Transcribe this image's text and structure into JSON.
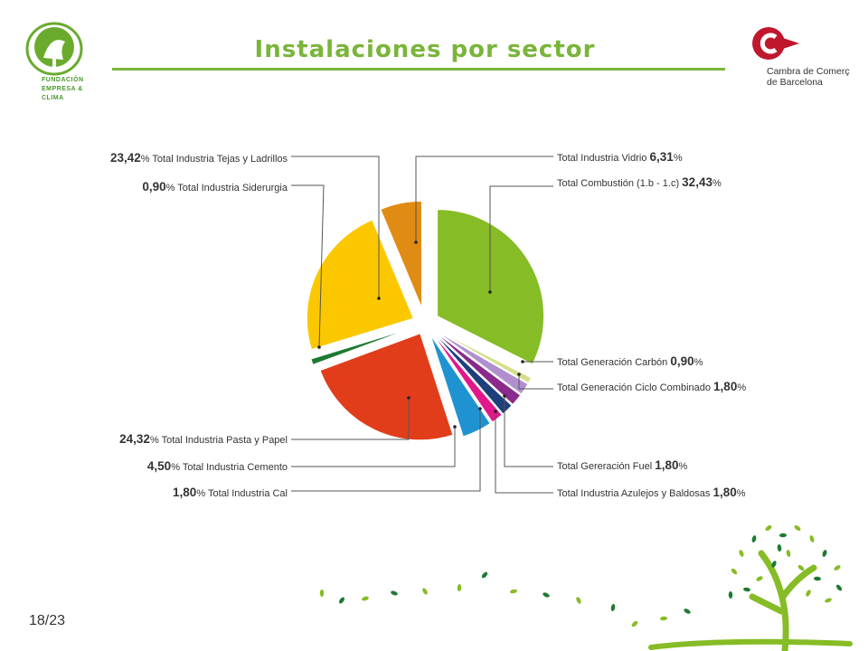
{
  "header": {
    "title": "Instalaciones por sector",
    "org_left": [
      "FUNDACIÓN",
      "EMPRESA &",
      "CLIMA"
    ],
    "org_right": [
      "Cambra de Comerç",
      "de Barcelona"
    ]
  },
  "page_number": "18/23",
  "colors": {
    "accent_green": "#7ab53a",
    "brand_red": "#c0172d"
  },
  "chart_data": {
    "type": "pie",
    "title": "Instalaciones por sector",
    "slices": [
      {
        "name": "Total Combustión (1.b - 1.c)",
        "pct_text": "32,43",
        "value": 32.43,
        "color": "#86bc25"
      },
      {
        "name": "Total Generación Carbón",
        "pct_text": "0,90",
        "value": 0.9,
        "color": "#d4e08a"
      },
      {
        "name": "Total Generación Ciclo Combinado",
        "pct_text": "1,80",
        "value": 1.8,
        "color": "#b18fcf"
      },
      {
        "name": "Total Industria Azulejos y Baldosas",
        "pct_text": "1,80",
        "value": 1.8,
        "color": "#8a2a8a"
      },
      {
        "name": "Total Gereración Fuel",
        "pct_text": "1,80",
        "value": 1.8,
        "color": "#1e3f7a"
      },
      {
        "name": "Total Industria Cal",
        "pct_text": "1,80",
        "value": 1.8,
        "color": "#e2178b"
      },
      {
        "name": "Total Industria Cemento",
        "pct_text": "4,50",
        "value": 4.5,
        "color": "#1f93d1"
      },
      {
        "name": "Total Industria Pasta y Papel",
        "pct_text": "24,32",
        "value": 24.32,
        "color": "#e13d1b"
      },
      {
        "name": "Total Industria Siderurgia",
        "pct_text": "0,90",
        "value": 0.9,
        "color": "#1e7a32"
      },
      {
        "name": "Total Industria Tejas y Ladrillos",
        "pct_text": "23,42",
        "value": 23.42,
        "color": "#fbc800"
      },
      {
        "name": "Total Industria Vidrio",
        "pct_text": "6,31",
        "value": 6.31,
        "color": "#e08b13"
      }
    ]
  }
}
